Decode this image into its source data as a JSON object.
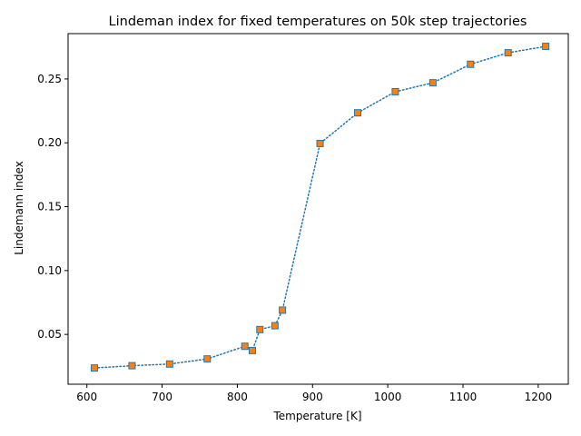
{
  "chart_data": {
    "type": "line",
    "title": "Lindeman index for fixed temperatures on 50k step trajectories",
    "xlabel": "Temperature [K]",
    "ylabel": "Lindemann index",
    "xlim": [
      575,
      1240
    ],
    "ylim": [
      0.011,
      0.2855
    ],
    "xticks": [
      600,
      700,
      800,
      900,
      1000,
      1100,
      1200
    ],
    "xtick_labels": [
      "600",
      "700",
      "800",
      "900",
      "1000",
      "1100",
      "1200"
    ],
    "yticks": [
      0.05,
      0.1,
      0.15,
      0.2,
      0.25
    ],
    "ytick_labels": [
      "0.05",
      "0.10",
      "0.15",
      "0.20",
      "0.25"
    ],
    "grid": false,
    "series": [
      {
        "name": "Lindemann index",
        "line_color": "#1f77b4",
        "marker_color": "#ff7f0e",
        "line_style": "dotted",
        "marker": "square",
        "x": [
          610,
          660,
          710,
          760,
          810,
          820,
          830,
          850,
          860,
          910,
          960,
          1010,
          1060,
          1110,
          1160,
          1210
        ],
        "y": [
          0.0237,
          0.0255,
          0.0268,
          0.0308,
          0.0407,
          0.0374,
          0.0538,
          0.0568,
          0.069,
          0.1995,
          0.2235,
          0.24,
          0.247,
          0.2615,
          0.2705,
          0.2755
        ]
      }
    ]
  }
}
